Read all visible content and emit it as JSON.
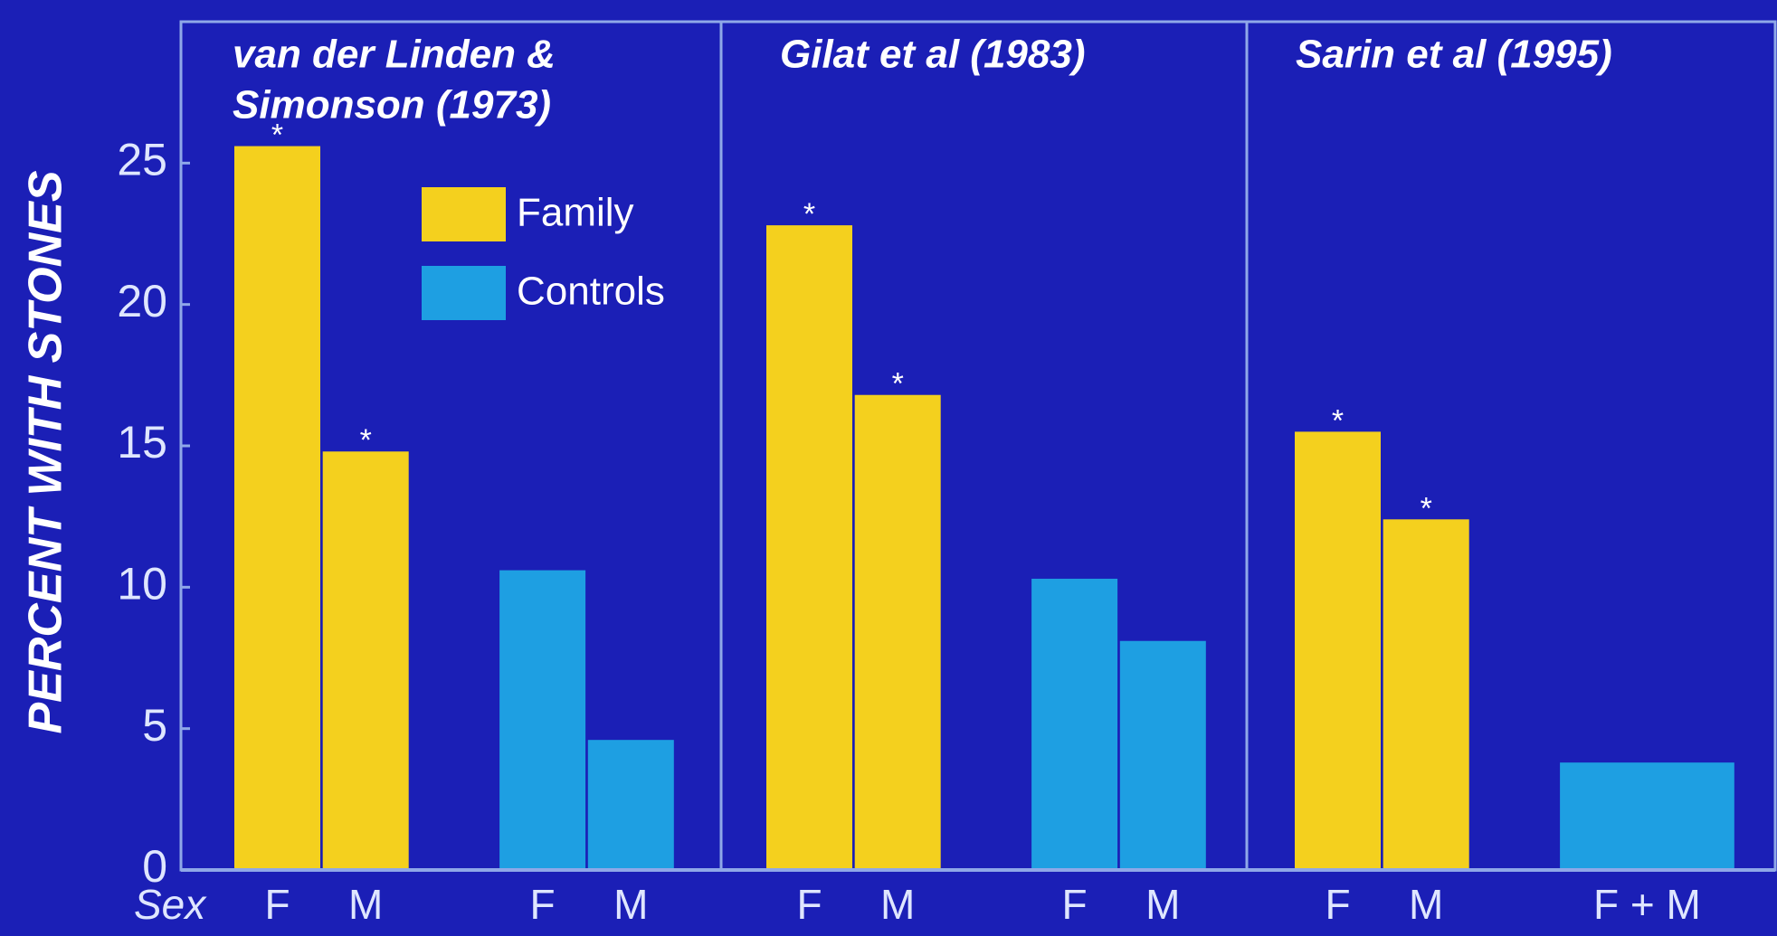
{
  "chart_data": [
    {
      "type": "bar",
      "title": [
        "van der Linden &",
        "Simonson (1973)"
      ],
      "ylabel": "PERCENT WITH STONES",
      "xlabel": "Sex",
      "categories": [
        "F",
        "M",
        null,
        "F",
        "M"
      ],
      "series": [
        {
          "name": "Family",
          "color": "#f4d01e",
          "values": [
            25.6,
            14.8,
            null,
            null,
            null
          ]
        },
        {
          "name": "Controls",
          "color": "#1e9fe2",
          "values": [
            null,
            null,
            null,
            10.6,
            4.6
          ]
        }
      ],
      "marker": "*",
      "ylim": [
        0,
        30
      ],
      "yticks": [
        0,
        5,
        10,
        15,
        20,
        25
      ],
      "legend": "upper right"
    },
    {
      "type": "bar",
      "title": [
        "Gilat et al (1983)"
      ],
      "categories": [
        "F",
        "M",
        null,
        "F",
        "M"
      ],
      "series": [
        {
          "name": "Family",
          "color": "#f4d01e",
          "values": [
            22.8,
            16.8,
            null,
            null,
            null
          ]
        },
        {
          "name": "Controls",
          "color": "#1e9fe2",
          "values": [
            null,
            null,
            null,
            10.3,
            8.1
          ]
        }
      ],
      "marker": "*",
      "ylim": [
        0,
        30
      ]
    },
    {
      "type": "bar",
      "title": [
        "Sarin et al (1995)"
      ],
      "categories": [
        "F",
        "M",
        null,
        "F + M"
      ],
      "series": [
        {
          "name": "Family",
          "color": "#f4d01e",
          "values": [
            15.5,
            12.4,
            null,
            null
          ]
        },
        {
          "name": "Controls",
          "color": "#1e9fe2",
          "values": [
            null,
            null,
            null,
            3.8
          ]
        }
      ],
      "marker": "*",
      "ylim": [
        0,
        30
      ]
    }
  ]
}
